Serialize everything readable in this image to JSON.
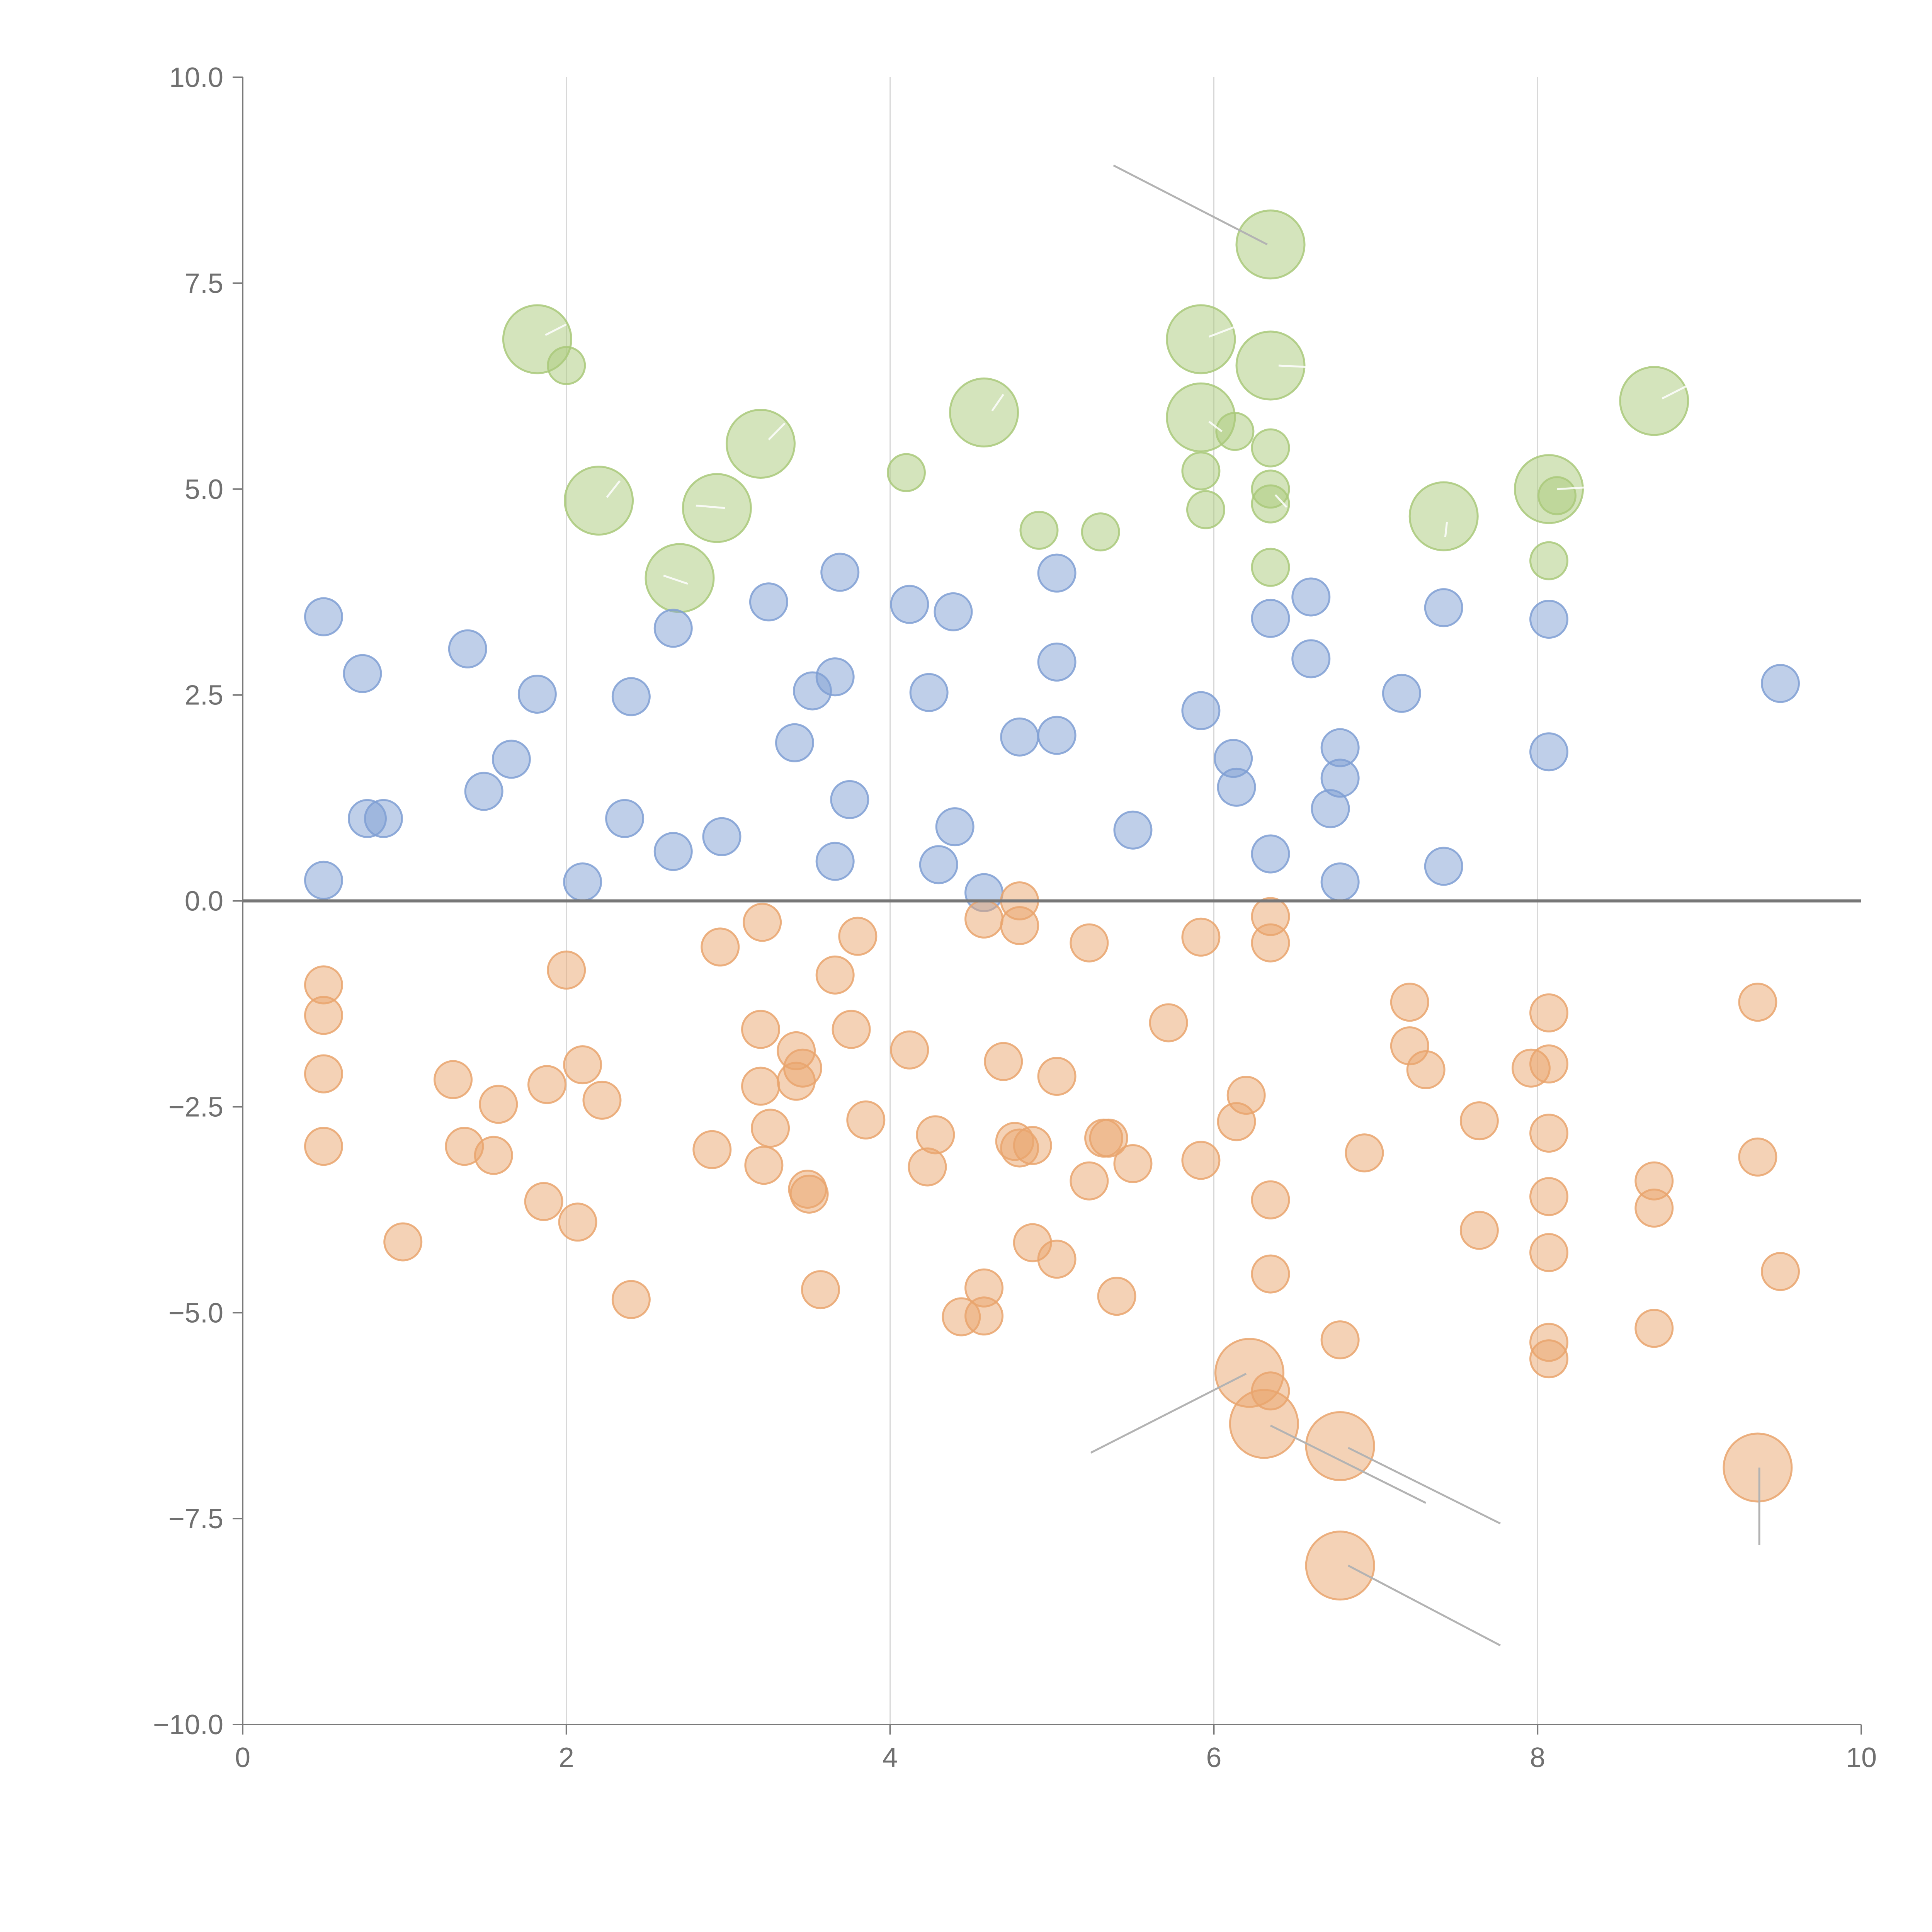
{
  "chart_data": {
    "type": "scatter",
    "title": "",
    "xlabel": "",
    "ylabel": "",
    "xlim": [
      0,
      10
    ],
    "ylim": [
      -10,
      10
    ],
    "x_ticks": [
      0,
      2,
      4,
      6,
      8,
      10
    ],
    "x_tick_labels": [
      "0",
      "2",
      "4",
      "6",
      "8",
      "10"
    ],
    "y_ticks": [
      -10,
      -7.5,
      -5,
      -2.5,
      0,
      2.5,
      5,
      7.5,
      10
    ],
    "y_tick_labels": [
      "−10.0",
      "−7.5",
      "−5.0",
      "−2.5",
      "0.0",
      "2.5",
      "5.0",
      "7.5",
      "10.0"
    ],
    "vertical_grid_x": [
      2,
      4,
      6,
      8
    ],
    "reference_line_y": 0,
    "colors": {
      "green": "#a9c97a",
      "blue": "#7f9fd4",
      "orange": "#e9a56d",
      "axis": "#7a7a7a",
      "grid": "#d8d8d8",
      "leader": "#b3b3b3"
    },
    "series": [
      {
        "name": "green",
        "color": "#a9c97a",
        "points": [
          {
            "x": 1.82,
            "y": 6.82,
            "s": "l"
          },
          {
            "x": 2.0,
            "y": 6.5,
            "s": "s"
          },
          {
            "x": 2.2,
            "y": 4.86,
            "s": "l"
          },
          {
            "x": 2.7,
            "y": 3.92,
            "s": "l"
          },
          {
            "x": 2.93,
            "y": 4.77,
            "s": "l"
          },
          {
            "x": 3.2,
            "y": 5.55,
            "s": "l"
          },
          {
            "x": 4.1,
            "y": 5.2,
            "s": "s"
          },
          {
            "x": 4.58,
            "y": 5.93,
            "s": "l"
          },
          {
            "x": 4.92,
            "y": 4.5,
            "s": "s"
          },
          {
            "x": 5.3,
            "y": 4.48,
            "s": "s"
          },
          {
            "x": 5.92,
            "y": 6.82,
            "s": "l"
          },
          {
            "x": 5.92,
            "y": 5.87,
            "s": "l"
          },
          {
            "x": 5.92,
            "y": 5.22,
            "s": "s"
          },
          {
            "x": 5.95,
            "y": 4.75,
            "s": "s"
          },
          {
            "x": 6.13,
            "y": 5.7,
            "s": "s"
          },
          {
            "x": 6.35,
            "y": 7.97,
            "s": "l"
          },
          {
            "x": 6.35,
            "y": 6.5,
            "s": "l"
          },
          {
            "x": 6.35,
            "y": 5.5,
            "s": "s"
          },
          {
            "x": 6.35,
            "y": 5.0,
            "s": "s"
          },
          {
            "x": 6.35,
            "y": 4.82,
            "s": "s"
          },
          {
            "x": 6.35,
            "y": 4.05,
            "s": "s"
          },
          {
            "x": 7.42,
            "y": 4.67,
            "s": "l"
          },
          {
            "x": 8.07,
            "y": 5.0,
            "s": "l"
          },
          {
            "x": 8.12,
            "y": 4.92,
            "s": "s"
          },
          {
            "x": 8.07,
            "y": 4.13,
            "s": "s"
          },
          {
            "x": 8.72,
            "y": 6.07,
            "s": "l"
          }
        ]
      },
      {
        "name": "blue",
        "color": "#7f9fd4",
        "points": [
          {
            "x": 0.5,
            "y": 3.45
          },
          {
            "x": 0.5,
            "y": 0.25
          },
          {
            "x": 0.74,
            "y": 2.76
          },
          {
            "x": 0.77,
            "y": 1.0
          },
          {
            "x": 0.87,
            "y": 1.0
          },
          {
            "x": 1.39,
            "y": 3.06
          },
          {
            "x": 1.49,
            "y": 1.33
          },
          {
            "x": 1.66,
            "y": 1.72
          },
          {
            "x": 1.82,
            "y": 2.51
          },
          {
            "x": 2.1,
            "y": 0.23
          },
          {
            "x": 2.36,
            "y": 1.0
          },
          {
            "x": 2.4,
            "y": 2.48
          },
          {
            "x": 2.66,
            "y": 3.31
          },
          {
            "x": 2.66,
            "y": 0.6
          },
          {
            "x": 2.96,
            "y": 0.78
          },
          {
            "x": 3.25,
            "y": 3.63
          },
          {
            "x": 3.41,
            "y": 1.92
          },
          {
            "x": 3.52,
            "y": 2.55
          },
          {
            "x": 3.66,
            "y": 2.72
          },
          {
            "x": 3.66,
            "y": 0.48
          },
          {
            "x": 3.69,
            "y": 3.99
          },
          {
            "x": 3.75,
            "y": 1.23
          },
          {
            "x": 4.12,
            "y": 3.6
          },
          {
            "x": 4.24,
            "y": 2.53
          },
          {
            "x": 4.3,
            "y": 0.44
          },
          {
            "x": 4.39,
            "y": 3.51
          },
          {
            "x": 4.4,
            "y": 0.9
          },
          {
            "x": 4.58,
            "y": 0.1
          },
          {
            "x": 4.8,
            "y": 1.99
          },
          {
            "x": 5.03,
            "y": 3.98
          },
          {
            "x": 5.03,
            "y": 2.9
          },
          {
            "x": 5.03,
            "y": 2.01
          },
          {
            "x": 5.5,
            "y": 0.86
          },
          {
            "x": 5.92,
            "y": 2.31
          },
          {
            "x": 6.12,
            "y": 1.73
          },
          {
            "x": 6.14,
            "y": 1.38
          },
          {
            "x": 6.35,
            "y": 3.43
          },
          {
            "x": 6.35,
            "y": 0.57
          },
          {
            "x": 6.6,
            "y": 3.69
          },
          {
            "x": 6.6,
            "y": 2.94
          },
          {
            "x": 6.72,
            "y": 1.12
          },
          {
            "x": 6.78,
            "y": 1.86
          },
          {
            "x": 6.78,
            "y": 1.49
          },
          {
            "x": 6.78,
            "y": 0.23
          },
          {
            "x": 7.16,
            "y": 2.52
          },
          {
            "x": 7.42,
            "y": 3.56
          },
          {
            "x": 7.42,
            "y": 0.42
          },
          {
            "x": 8.07,
            "y": 3.42
          },
          {
            "x": 8.07,
            "y": 1.81
          },
          {
            "x": 9.5,
            "y": 2.64
          }
        ]
      },
      {
        "name": "orange",
        "color": "#e9a56d",
        "points": [
          {
            "x": 0.5,
            "y": -1.02,
            "s": "s"
          },
          {
            "x": 0.5,
            "y": -1.39,
            "s": "s"
          },
          {
            "x": 0.5,
            "y": -2.1,
            "s": "s"
          },
          {
            "x": 0.5,
            "y": -2.98,
            "s": "s"
          },
          {
            "x": 0.99,
            "y": -4.14,
            "s": "s"
          },
          {
            "x": 1.3,
            "y": -2.17,
            "s": "s"
          },
          {
            "x": 1.37,
            "y": -2.98,
            "s": "s"
          },
          {
            "x": 1.55,
            "y": -3.09,
            "s": "s"
          },
          {
            "x": 1.58,
            "y": -2.47,
            "s": "s"
          },
          {
            "x": 1.86,
            "y": -3.65,
            "s": "s"
          },
          {
            "x": 1.88,
            "y": -2.23,
            "s": "s"
          },
          {
            "x": 2.0,
            "y": -0.84,
            "s": "s"
          },
          {
            "x": 2.07,
            "y": -3.9,
            "s": "s"
          },
          {
            "x": 2.1,
            "y": -1.99,
            "s": "s"
          },
          {
            "x": 2.22,
            "y": -2.42,
            "s": "s"
          },
          {
            "x": 2.4,
            "y": -4.84,
            "s": "s"
          },
          {
            "x": 2.9,
            "y": -3.02,
            "s": "s"
          },
          {
            "x": 2.95,
            "y": -0.56,
            "s": "s"
          },
          {
            "x": 3.2,
            "y": -1.56,
            "s": "s"
          },
          {
            "x": 3.2,
            "y": -2.25,
            "s": "s"
          },
          {
            "x": 3.21,
            "y": -0.26,
            "s": "s"
          },
          {
            "x": 3.22,
            "y": -3.21,
            "s": "s"
          },
          {
            "x": 3.26,
            "y": -2.76,
            "s": "s"
          },
          {
            "x": 3.42,
            "y": -1.82,
            "s": "s"
          },
          {
            "x": 3.42,
            "y": -2.19,
            "s": "s"
          },
          {
            "x": 3.46,
            "y": -2.03,
            "s": "s"
          },
          {
            "x": 3.49,
            "y": -3.5,
            "s": "s"
          },
          {
            "x": 3.5,
            "y": -3.56,
            "s": "s"
          },
          {
            "x": 3.57,
            "y": -4.72,
            "s": "s"
          },
          {
            "x": 3.66,
            "y": -0.9,
            "s": "s"
          },
          {
            "x": 3.76,
            "y": -1.56,
            "s": "s"
          },
          {
            "x": 3.8,
            "y": -0.43,
            "s": "s"
          },
          {
            "x": 3.85,
            "y": -2.66,
            "s": "s"
          },
          {
            "x": 4.12,
            "y": -1.81,
            "s": "s"
          },
          {
            "x": 4.23,
            "y": -3.23,
            "s": "s"
          },
          {
            "x": 4.28,
            "y": -2.84,
            "s": "s"
          },
          {
            "x": 4.44,
            "y": -5.05,
            "s": "s"
          },
          {
            "x": 4.58,
            "y": -0.22,
            "s": "s"
          },
          {
            "x": 4.58,
            "y": -4.7,
            "s": "s"
          },
          {
            "x": 4.58,
            "y": -5.04,
            "s": "s"
          },
          {
            "x": 4.7,
            "y": -1.95,
            "s": "s"
          },
          {
            "x": 4.77,
            "y": -2.92,
            "s": "s"
          },
          {
            "x": 4.8,
            "y": -3.0,
            "s": "s"
          },
          {
            "x": 4.8,
            "y": 0.0,
            "s": "s"
          },
          {
            "x": 4.8,
            "y": -0.3,
            "s": "s"
          },
          {
            "x": 4.88,
            "y": -2.97,
            "s": "s"
          },
          {
            "x": 4.88,
            "y": -4.15,
            "s": "s"
          },
          {
            "x": 5.03,
            "y": -2.13,
            "s": "s"
          },
          {
            "x": 5.03,
            "y": -4.35,
            "s": "s"
          },
          {
            "x": 5.23,
            "y": -0.51,
            "s": "s"
          },
          {
            "x": 5.23,
            "y": -3.4,
            "s": "s"
          },
          {
            "x": 5.32,
            "y": -2.88,
            "s": "s"
          },
          {
            "x": 5.35,
            "y": -2.88,
            "s": "s"
          },
          {
            "x": 5.4,
            "y": -4.8,
            "s": "s"
          },
          {
            "x": 5.5,
            "y": -3.19,
            "s": "s"
          },
          {
            "x": 5.72,
            "y": -1.48,
            "s": "s"
          },
          {
            "x": 5.92,
            "y": -0.44,
            "s": "s"
          },
          {
            "x": 5.92,
            "y": -3.15,
            "s": "s"
          },
          {
            "x": 6.14,
            "y": -2.68,
            "s": "s"
          },
          {
            "x": 6.2,
            "y": -2.36,
            "s": "s"
          },
          {
            "x": 6.22,
            "y": -5.73,
            "s": "l"
          },
          {
            "x": 6.31,
            "y": -6.35,
            "s": "l"
          },
          {
            "x": 6.35,
            "y": -0.19,
            "s": "s"
          },
          {
            "x": 6.35,
            "y": -0.51,
            "s": "s"
          },
          {
            "x": 6.35,
            "y": -3.63,
            "s": "s"
          },
          {
            "x": 6.35,
            "y": -4.53,
            "s": "s"
          },
          {
            "x": 6.35,
            "y": -5.95,
            "s": "s"
          },
          {
            "x": 6.78,
            "y": -5.33,
            "s": "s"
          },
          {
            "x": 6.78,
            "y": -6.62,
            "s": "l"
          },
          {
            "x": 6.78,
            "y": -8.07,
            "s": "l"
          },
          {
            "x": 6.93,
            "y": -3.06,
            "s": "s"
          },
          {
            "x": 7.21,
            "y": -1.23,
            "s": "s"
          },
          {
            "x": 7.21,
            "y": -1.76,
            "s": "s"
          },
          {
            "x": 7.31,
            "y": -2.05,
            "s": "s"
          },
          {
            "x": 7.64,
            "y": -2.67,
            "s": "s"
          },
          {
            "x": 7.64,
            "y": -4.0,
            "s": "s"
          },
          {
            "x": 7.96,
            "y": -2.03,
            "s": "s"
          },
          {
            "x": 8.07,
            "y": -1.36,
            "s": "s"
          },
          {
            "x": 8.07,
            "y": -1.98,
            "s": "s"
          },
          {
            "x": 8.07,
            "y": -2.82,
            "s": "s"
          },
          {
            "x": 8.07,
            "y": -3.59,
            "s": "s"
          },
          {
            "x": 8.07,
            "y": -4.27,
            "s": "s"
          },
          {
            "x": 8.07,
            "y": -5.36,
            "s": "s"
          },
          {
            "x": 8.07,
            "y": -5.56,
            "s": "s"
          },
          {
            "x": 8.72,
            "y": -3.4,
            "s": "s"
          },
          {
            "x": 8.72,
            "y": -3.73,
            "s": "s"
          },
          {
            "x": 8.72,
            "y": -5.19,
            "s": "s"
          },
          {
            "x": 9.36,
            "y": -1.23,
            "s": "s"
          },
          {
            "x": 9.36,
            "y": -3.11,
            "s": "s"
          },
          {
            "x": 9.36,
            "y": -6.88,
            "s": "l"
          },
          {
            "x": 9.5,
            "y": -4.5,
            "s": "s"
          }
        ]
      }
    ],
    "annotation_leaders": [
      {
        "from": [
          5.38,
          8.93
        ],
        "to": [
          6.33,
          7.97
        ],
        "style": "grey"
      },
      {
        "from": [
          5.24,
          -6.7
        ],
        "to": [
          6.2,
          -5.74
        ],
        "style": "grey"
      },
      {
        "from": [
          6.35,
          -6.37
        ],
        "to": [
          7.31,
          -7.31
        ],
        "style": "grey"
      },
      {
        "from": [
          6.83,
          -6.64
        ],
        "to": [
          7.77,
          -7.56
        ],
        "style": "grey"
      },
      {
        "from": [
          6.83,
          -8.07
        ],
        "to": [
          7.77,
          -9.04
        ],
        "style": "grey"
      },
      {
        "from": [
          9.37,
          -6.88
        ],
        "to": [
          9.37,
          -7.82
        ],
        "style": "grey"
      },
      {
        "from": [
          1.87,
          6.87
        ],
        "to": [
          2.0,
          7.0
        ],
        "style": "white"
      },
      {
        "from": [
          2.25,
          4.9
        ],
        "to": [
          2.33,
          5.1
        ],
        "style": "white"
      },
      {
        "from": [
          2.75,
          3.85
        ],
        "to": [
          2.6,
          3.95
        ],
        "style": "white"
      },
      {
        "from": [
          2.98,
          4.77
        ],
        "to": [
          2.8,
          4.8
        ],
        "style": "white"
      },
      {
        "from": [
          3.25,
          5.6
        ],
        "to": [
          3.35,
          5.8
        ],
        "style": "white"
      },
      {
        "from": [
          4.63,
          5.95
        ],
        "to": [
          4.7,
          6.15
        ],
        "style": "white"
      },
      {
        "from": [
          5.97,
          6.85
        ],
        "to": [
          6.13,
          6.97
        ],
        "style": "white"
      },
      {
        "from": [
          5.97,
          5.82
        ],
        "to": [
          6.05,
          5.7
        ],
        "style": "white"
      },
      {
        "from": [
          6.4,
          6.5
        ],
        "to": [
          6.6,
          6.48
        ],
        "style": "white"
      },
      {
        "from": [
          7.44,
          4.6
        ],
        "to": [
          7.43,
          4.42
        ],
        "style": "white"
      },
      {
        "from": [
          8.12,
          5.0
        ],
        "to": [
          8.3,
          5.02
        ],
        "style": "white"
      },
      {
        "from": [
          8.77,
          6.1
        ],
        "to": [
          8.92,
          6.25
        ],
        "style": "white"
      },
      {
        "from": [
          6.38,
          4.93
        ],
        "to": [
          6.45,
          4.78
        ],
        "style": "white"
      }
    ]
  }
}
